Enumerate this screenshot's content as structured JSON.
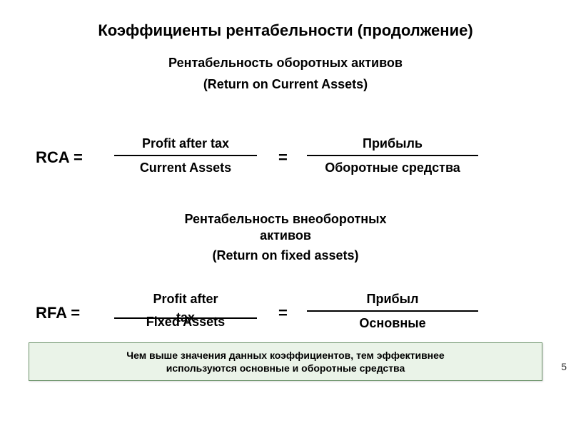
{
  "colors": {
    "background": "#ffffff",
    "text": "#000000",
    "note_bg": "#eaf3e8",
    "note_border": "#6d936b"
  },
  "typography": {
    "family": "Verdana",
    "title_size_pt": 22,
    "subtitle_size_pt": 18,
    "formula_size_pt": 18,
    "note_size_pt": 14
  },
  "title": "Коэффициенты рентабельности (продолжение)",
  "section1": {
    "heading_ru": "Рентабельность оборотных активов",
    "heading_en": "(Return on Current Assets)"
  },
  "rca": {
    "label": "RCA =",
    "frac_en": {
      "num": "Profit after tax",
      "den": "Current Assets"
    },
    "equals": "=",
    "frac_ru": {
      "num": "Прибыль",
      "den": "Оборотные средства"
    }
  },
  "section2": {
    "heading_ru_line1": "Рентабельность внеоборотных",
    "heading_ru_line2": "активов",
    "heading_en": "(Return on fixed assets)"
  },
  "rfa": {
    "label": "RFA =",
    "frac_en": {
      "num_line1": "Profit after",
      "num_line2": "tax",
      "den": "Fixed Assets"
    },
    "equals": "=",
    "frac_ru": {
      "num": "Прибыл",
      "den": "Основные"
    }
  },
  "note": {
    "line1": "Чем выше значения данных коэффициентов, тем эффективнее",
    "line2": "используются основные и оборотные средства"
  },
  "page_number_fragment": "5"
}
